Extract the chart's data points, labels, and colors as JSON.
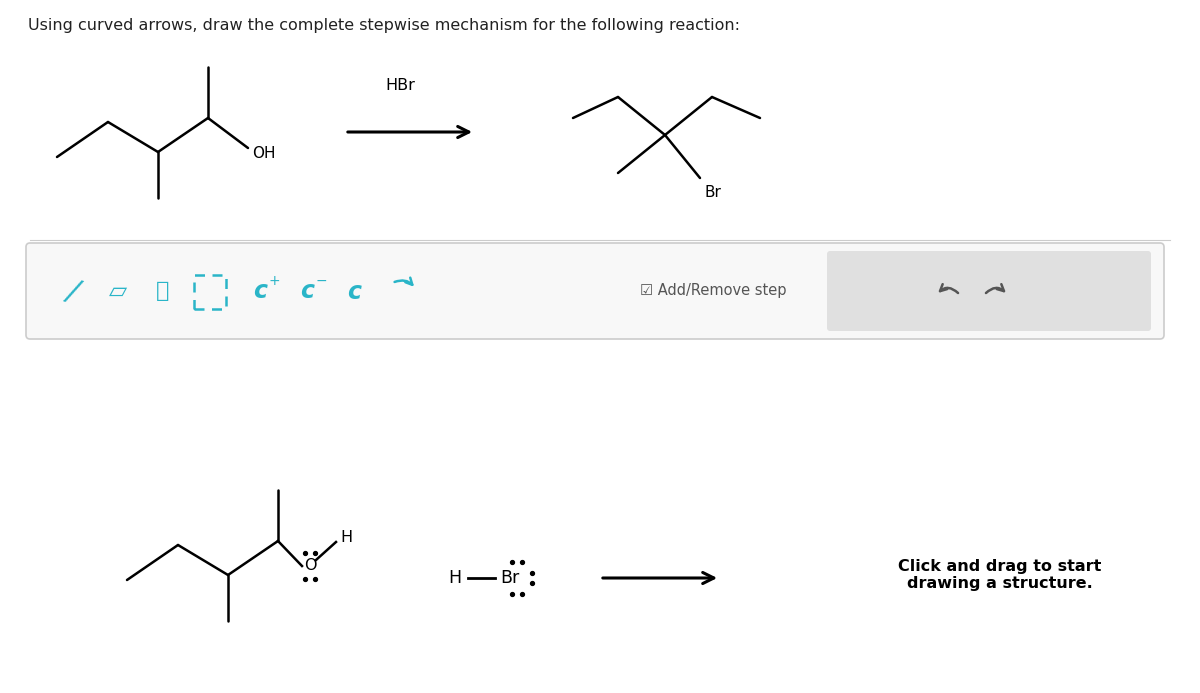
{
  "bg_color": "#ffffff",
  "title_text": "Using curved arrows, draw the complete stepwise mechanism for the following reaction:",
  "title_fontsize": 11.5,
  "title_color": "#222222",
  "toolbar_icon_color": "#2ab5c8",
  "toolbar_gray_color": "#555555",
  "hbr_label": "HBr",
  "br_label": "Br",
  "oh_label": "OH",
  "h_label": "H",
  "click_drag_text": "Click and drag to start\ndrawing a structure.",
  "mol_lw": 1.8,
  "arrow_lw": 2.0
}
